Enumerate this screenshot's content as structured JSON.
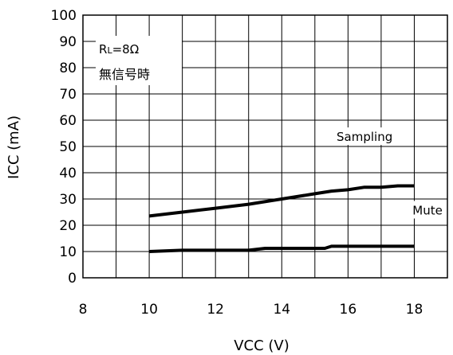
{
  "chart_data": {
    "type": "line",
    "xlabel": "VCC (V)",
    "ylabel": "ICC (mA)",
    "xlim": [
      8,
      19
    ],
    "ylim": [
      0,
      100
    ],
    "x_ticks": [
      8,
      10,
      12,
      14,
      16,
      18
    ],
    "y_ticks": [
      0,
      10,
      20,
      30,
      40,
      50,
      60,
      70,
      80,
      90,
      100
    ],
    "grid": true,
    "annotations": {
      "load": "RL=8Ω",
      "load_main": "R",
      "load_sub": "L",
      "load_rest": "=8Ω",
      "condition": "無信号時"
    },
    "series": [
      {
        "name": "Sampling",
        "x": [
          10,
          11,
          12,
          13,
          14,
          15,
          15.5,
          16,
          16.5,
          17,
          17.5,
          18
        ],
        "y": [
          23.5,
          25,
          26.5,
          28,
          30,
          32,
          33,
          33.5,
          34.5,
          34.5,
          35,
          35
        ]
      },
      {
        "name": "Mute",
        "x": [
          10,
          11,
          12,
          13,
          13.5,
          14,
          15,
          15.3,
          15.5,
          16,
          17,
          18
        ],
        "y": [
          10,
          10.5,
          10.5,
          10.5,
          11.2,
          11.2,
          11.2,
          11.2,
          12,
          12,
          12,
          12
        ]
      }
    ]
  }
}
